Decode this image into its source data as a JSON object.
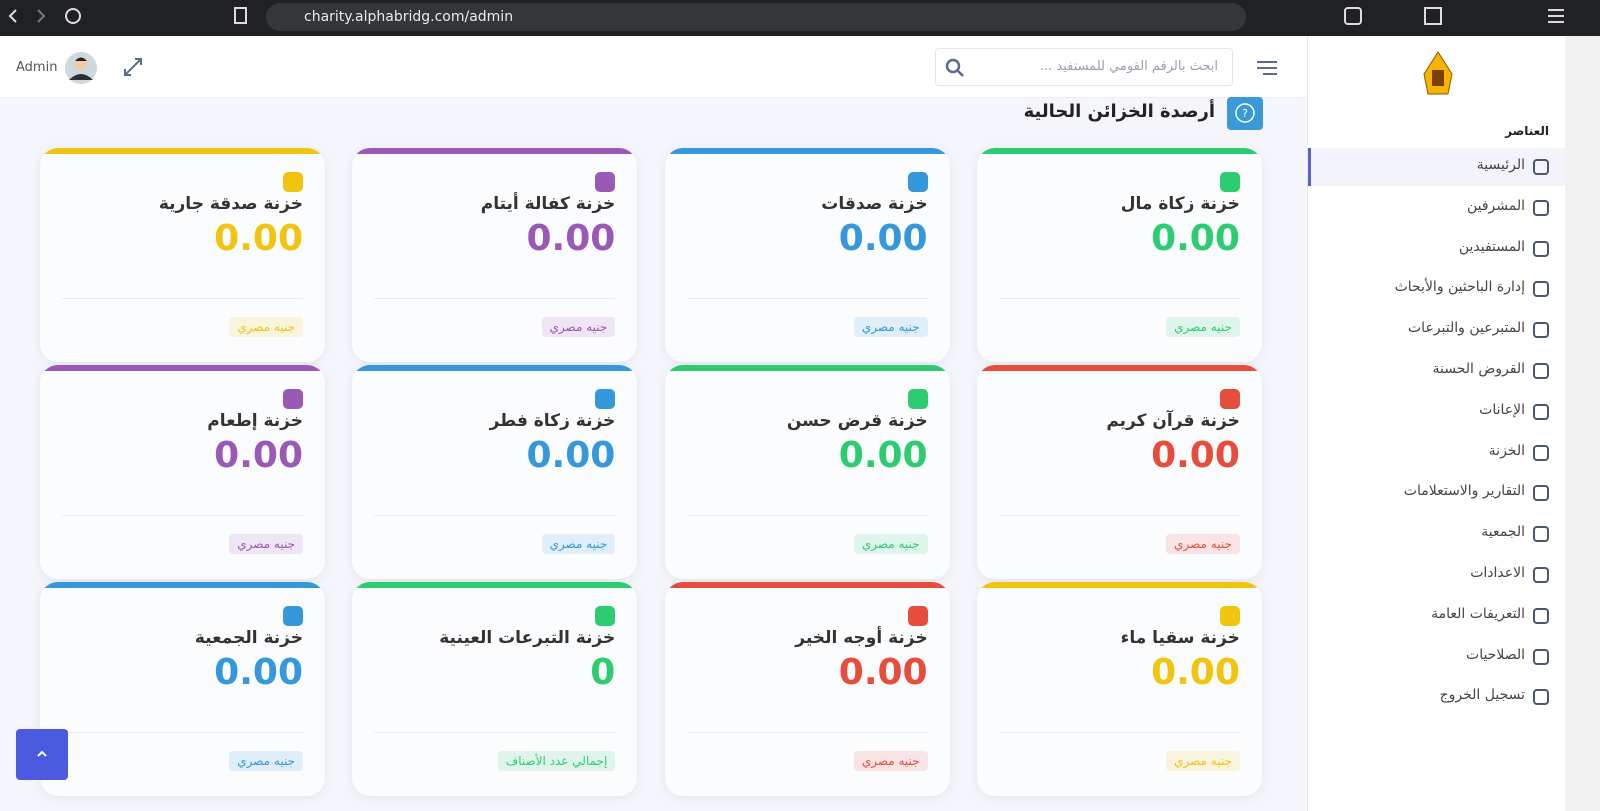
{
  "browser": {
    "url": "charity.alphabridg.com/admin"
  },
  "header": {
    "search_placeholder": "ابحث بالرقم القومي للمستفيد ...",
    "user": "Admin"
  },
  "sidebar": {
    "section": "العناصر",
    "items": [
      "الرئيسية",
      "المشرفين",
      "المستفيدين",
      "إدارة الباحثين والأبحاث",
      "المتبرعين والتبرعات",
      "القروض الحسنة",
      "الإعانات",
      "الخزنة",
      "التقارير والاستعلامات",
      "الجمعية",
      "الاعدادات",
      "التعريفات العامة",
      "الصلاحيات",
      "تسجيل الخروج"
    ]
  },
  "page": {
    "title": "أرصدة الخزائن الحالية"
  },
  "cards": [
    {
      "title": "خزنة زكاة مال",
      "value": "0.00",
      "badge": "جنيه مصري",
      "color": "#2ecc71"
    },
    {
      "title": "خزنة صدقات",
      "value": "0.00",
      "badge": "جنيه مصري",
      "color": "#3498db"
    },
    {
      "title": "خزنة كفالة أيتام",
      "value": "0.00",
      "badge": "جنيه مصري",
      "color": "#9b59b6"
    },
    {
      "title": "خزنة صدقة جارية",
      "value": "0.00",
      "badge": "جنيه مصري",
      "color": "#f1c40f"
    },
    {
      "title": "خزنة قرآن كريم",
      "value": "0.00",
      "badge": "جنيه مصري",
      "color": "#e74c3c"
    },
    {
      "title": "خزنة قرض حسن",
      "value": "0.00",
      "badge": "جنيه مصري",
      "color": "#2ecc71"
    },
    {
      "title": "خزنة زكاة فطر",
      "value": "0.00",
      "badge": "جنيه مصري",
      "color": "#3498db"
    },
    {
      "title": "خزنة إطعام",
      "value": "0.00",
      "badge": "جنيه مصري",
      "color": "#9b59b6"
    },
    {
      "title": "خزنة سقيا ماء",
      "value": "0.00",
      "badge": "جنيه مصري",
      "color": "#f1c40f"
    },
    {
      "title": "خزنة أوجه الخير",
      "value": "0.00",
      "badge": "جنيه مصري",
      "color": "#e74c3c"
    },
    {
      "title": "خزنة التبرعات العينية",
      "value": "0",
      "badge": "إجمالي عدد الأصناف",
      "color": "#2ecc71"
    },
    {
      "title": "خزنة الجمعية",
      "value": "0.00",
      "badge": "جنيه مصري",
      "color": "#3498db"
    }
  ]
}
